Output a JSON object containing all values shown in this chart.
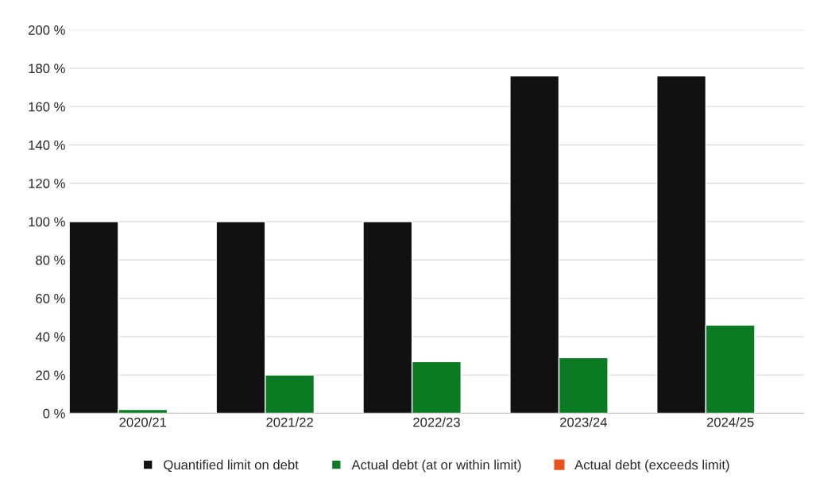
{
  "chart_data": {
    "type": "bar",
    "categories": [
      "2020/21",
      "2021/22",
      "2022/23",
      "2023/24",
      "2024/25"
    ],
    "series": [
      {
        "name": "Quantified limit on debt",
        "color": "#111111",
        "values": [
          100,
          100,
          100,
          176,
          176
        ]
      },
      {
        "name": "Actual debt (at or within limit)",
        "color": "#0a7a23",
        "values": [
          2,
          20,
          27,
          29,
          46
        ]
      },
      {
        "name": "Actual debt (exceeds limit)",
        "color": "#e8541c",
        "values": [
          null,
          null,
          null,
          null,
          null
        ]
      }
    ],
    "ylim": [
      0,
      200
    ],
    "yticks": [
      {
        "value": 0,
        "label": "0 %"
      },
      {
        "value": 20,
        "label": "20 %"
      },
      {
        "value": 40,
        "label": "40 %"
      },
      {
        "value": 60,
        "label": "60 %"
      },
      {
        "value": 80,
        "label": "80 %"
      },
      {
        "value": 100,
        "label": "100 %"
      },
      {
        "value": 120,
        "label": "120 %"
      },
      {
        "value": 140,
        "label": "140 %"
      },
      {
        "value": 160,
        "label": "160 %"
      },
      {
        "value": 180,
        "label": "180 %"
      },
      {
        "value": 200,
        "label": "200 %"
      }
    ],
    "grid": "y",
    "legend": "bottom"
  }
}
